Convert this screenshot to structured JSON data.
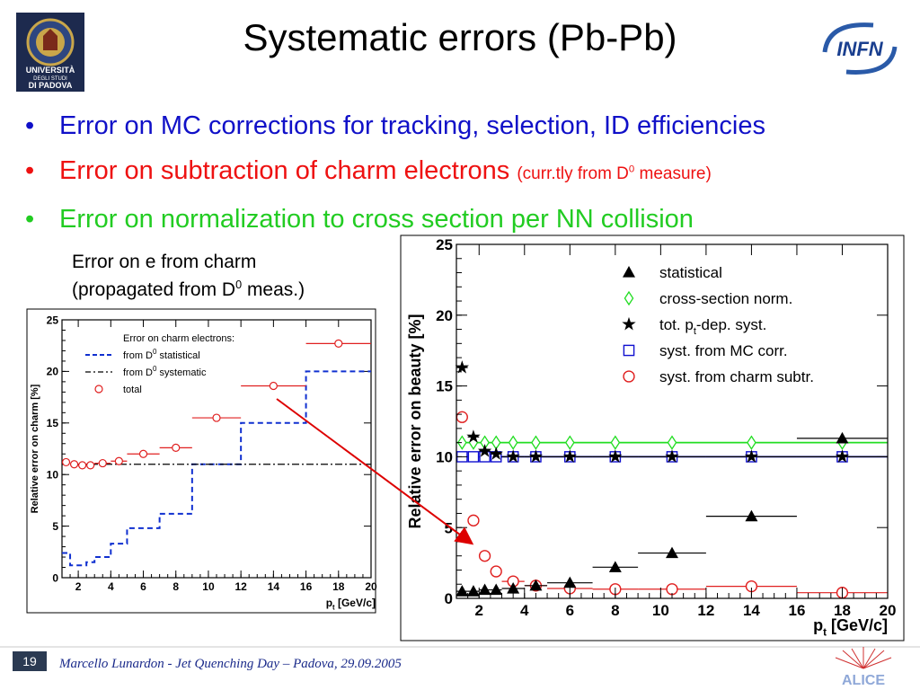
{
  "slide": {
    "title": "Systematic errors (Pb-Pb)",
    "bullets": [
      {
        "text": "Error on MC corrections for tracking, selection, ID efficiencies",
        "color": "#1010c8"
      },
      {
        "text": "Error on subtraction of charm electrons",
        "note_pre": "(curr.tly from D",
        "note_sup": "0",
        "note_post": " measure)",
        "color": "#ee1111"
      },
      {
        "text": "Error on normalization to cross section per NN collision",
        "color": "#22cc22"
      }
    ],
    "side_note_line1": "Error on e from charm",
    "side_note_line2_pre": "(propagated from D",
    "side_note_line2_sup": "0",
    "side_note_line2_post": " meas.)",
    "logo_left_lines": [
      "UNIVERSITÀ",
      "DEGLI STUDI",
      "DI PADOVA"
    ],
    "logo_right_text": "INFN",
    "footer_page": "19",
    "footer_text": "Marcello Lunardon - Jet Quenching Day – Padova, 29.09.2005",
    "footer_logo_text": "ALICE",
    "icons": [
      "university-seal-icon",
      "infn-logo-icon",
      "alice-logo-icon",
      "bullet-dot-icon",
      "arrow-icon"
    ]
  },
  "chart_data": [
    {
      "type": "step-scatter",
      "xlabel_main": "p",
      "xlabel_sub": "t",
      "xlabel_post": " [GeV/c]",
      "ylabel": "Relative error on charm [%]",
      "xlim": [
        1,
        20
      ],
      "ylim": [
        0,
        25
      ],
      "xticks": [
        2,
        4,
        6,
        8,
        10,
        12,
        14,
        16,
        18,
        20
      ],
      "yticks": [
        0,
        5,
        10,
        15,
        20,
        25
      ],
      "legend_title": "Error on charm electrons:",
      "legend_position": "top-left",
      "legend": [
        {
          "pre": "from D",
          "sup": "0",
          "post": " statistical",
          "style": "dashed",
          "color": "#1030d0"
        },
        {
          "pre": "from D",
          "sup": "0",
          "post": " systematic",
          "style": "dashdot",
          "color": "#000000"
        },
        {
          "pre": "total",
          "sup": "",
          "post": "",
          "style": "circle",
          "color": "#e02020"
        }
      ],
      "stat_steps": [
        {
          "x0": 1,
          "x1": 1.5,
          "y": 2.4
        },
        {
          "x0": 1.5,
          "x1": 2.5,
          "y": 1.2
        },
        {
          "x0": 2.5,
          "x1": 3.0,
          "y": 1.5
        },
        {
          "x0": 3.0,
          "x1": 4.0,
          "y": 2.0
        },
        {
          "x0": 4.0,
          "x1": 5.0,
          "y": 3.3
        },
        {
          "x0": 5.0,
          "x1": 7.0,
          "y": 4.8
        },
        {
          "x0": 7.0,
          "x1": 9.0,
          "y": 6.2
        },
        {
          "x0": 9.0,
          "x1": 12.0,
          "y": 11.0
        },
        {
          "x0": 12.0,
          "x1": 16.0,
          "y": 15.0
        },
        {
          "x0": 16.0,
          "x1": 20.0,
          "y": 20.0
        }
      ],
      "syst_level": 11.0,
      "total": [
        {
          "x": 1.25,
          "y": 11.2,
          "xerr": 0.25
        },
        {
          "x": 1.75,
          "y": 11.0,
          "xerr": 0.25
        },
        {
          "x": 2.25,
          "y": 10.9,
          "xerr": 0.25
        },
        {
          "x": 2.75,
          "y": 10.9,
          "xerr": 0.25
        },
        {
          "x": 3.5,
          "y": 11.1,
          "xerr": 0.5
        },
        {
          "x": 4.5,
          "y": 11.3,
          "xerr": 0.5
        },
        {
          "x": 6.0,
          "y": 12.0,
          "xerr": 1.0
        },
        {
          "x": 8.0,
          "y": 12.6,
          "xerr": 1.0
        },
        {
          "x": 10.5,
          "y": 15.5,
          "xerr": 1.5
        },
        {
          "x": 14.0,
          "y": 18.6,
          "xerr": 2.0
        },
        {
          "x": 18.0,
          "y": 22.7,
          "xerr": 2.0
        }
      ]
    },
    {
      "type": "scatter",
      "xlabel_main": "p",
      "xlabel_sub": "t",
      "xlabel_post": " [GeV/c]",
      "ylabel": "Relative error on beauty [%]",
      "xlim": [
        1,
        20
      ],
      "ylim": [
        0,
        25
      ],
      "xticks": [
        2,
        4,
        6,
        8,
        10,
        12,
        14,
        16,
        18,
        20
      ],
      "yticks": [
        0,
        5,
        10,
        15,
        20,
        25
      ],
      "legend_position": "top-right",
      "xbins": [
        {
          "x": 1.25,
          "e": 0.25
        },
        {
          "x": 1.75,
          "e": 0.25
        },
        {
          "x": 2.25,
          "e": 0.25
        },
        {
          "x": 2.75,
          "e": 0.25
        },
        {
          "x": 3.5,
          "e": 0.5
        },
        {
          "x": 4.5,
          "e": 0.5
        },
        {
          "x": 6.0,
          "e": 1.0
        },
        {
          "x": 8.0,
          "e": 1.0
        },
        {
          "x": 10.5,
          "e": 1.5
        },
        {
          "x": 14.0,
          "e": 2.0
        },
        {
          "x": 18.0,
          "e": 2.0
        }
      ],
      "series": [
        {
          "name": "statistical",
          "marker": "triangle",
          "color": "#000000",
          "values": [
            0.5,
            0.5,
            0.6,
            0.6,
            0.7,
            0.9,
            1.1,
            2.2,
            3.2,
            5.8,
            11.3
          ]
        },
        {
          "name": "cross-section norm.",
          "marker": "diamond",
          "color": "#22dd22",
          "values": [
            11,
            11,
            11,
            11,
            11,
            11,
            11,
            11,
            11,
            11,
            11
          ]
        },
        {
          "name": "tot. p",
          "name_sub": "t",
          "name_post": "-dep. syst.",
          "marker": "star",
          "color": "#000000",
          "values": [
            16.3,
            11.4,
            10.4,
            10.2,
            10.0,
            10.0,
            10.0,
            10.0,
            10.0,
            10.0,
            10.0
          ]
        },
        {
          "name": "syst. from MC corr.",
          "marker": "square",
          "color": "#1010d0",
          "values": [
            10,
            10,
            10,
            10,
            10,
            10,
            10,
            10,
            10,
            10,
            10
          ]
        },
        {
          "name": "syst. from charm subtr.",
          "marker": "circle",
          "color": "#e02020",
          "values": [
            12.8,
            5.5,
            3.0,
            1.9,
            1.2,
            0.9,
            0.7,
            0.65,
            0.65,
            0.85,
            0.4
          ]
        }
      ]
    }
  ]
}
